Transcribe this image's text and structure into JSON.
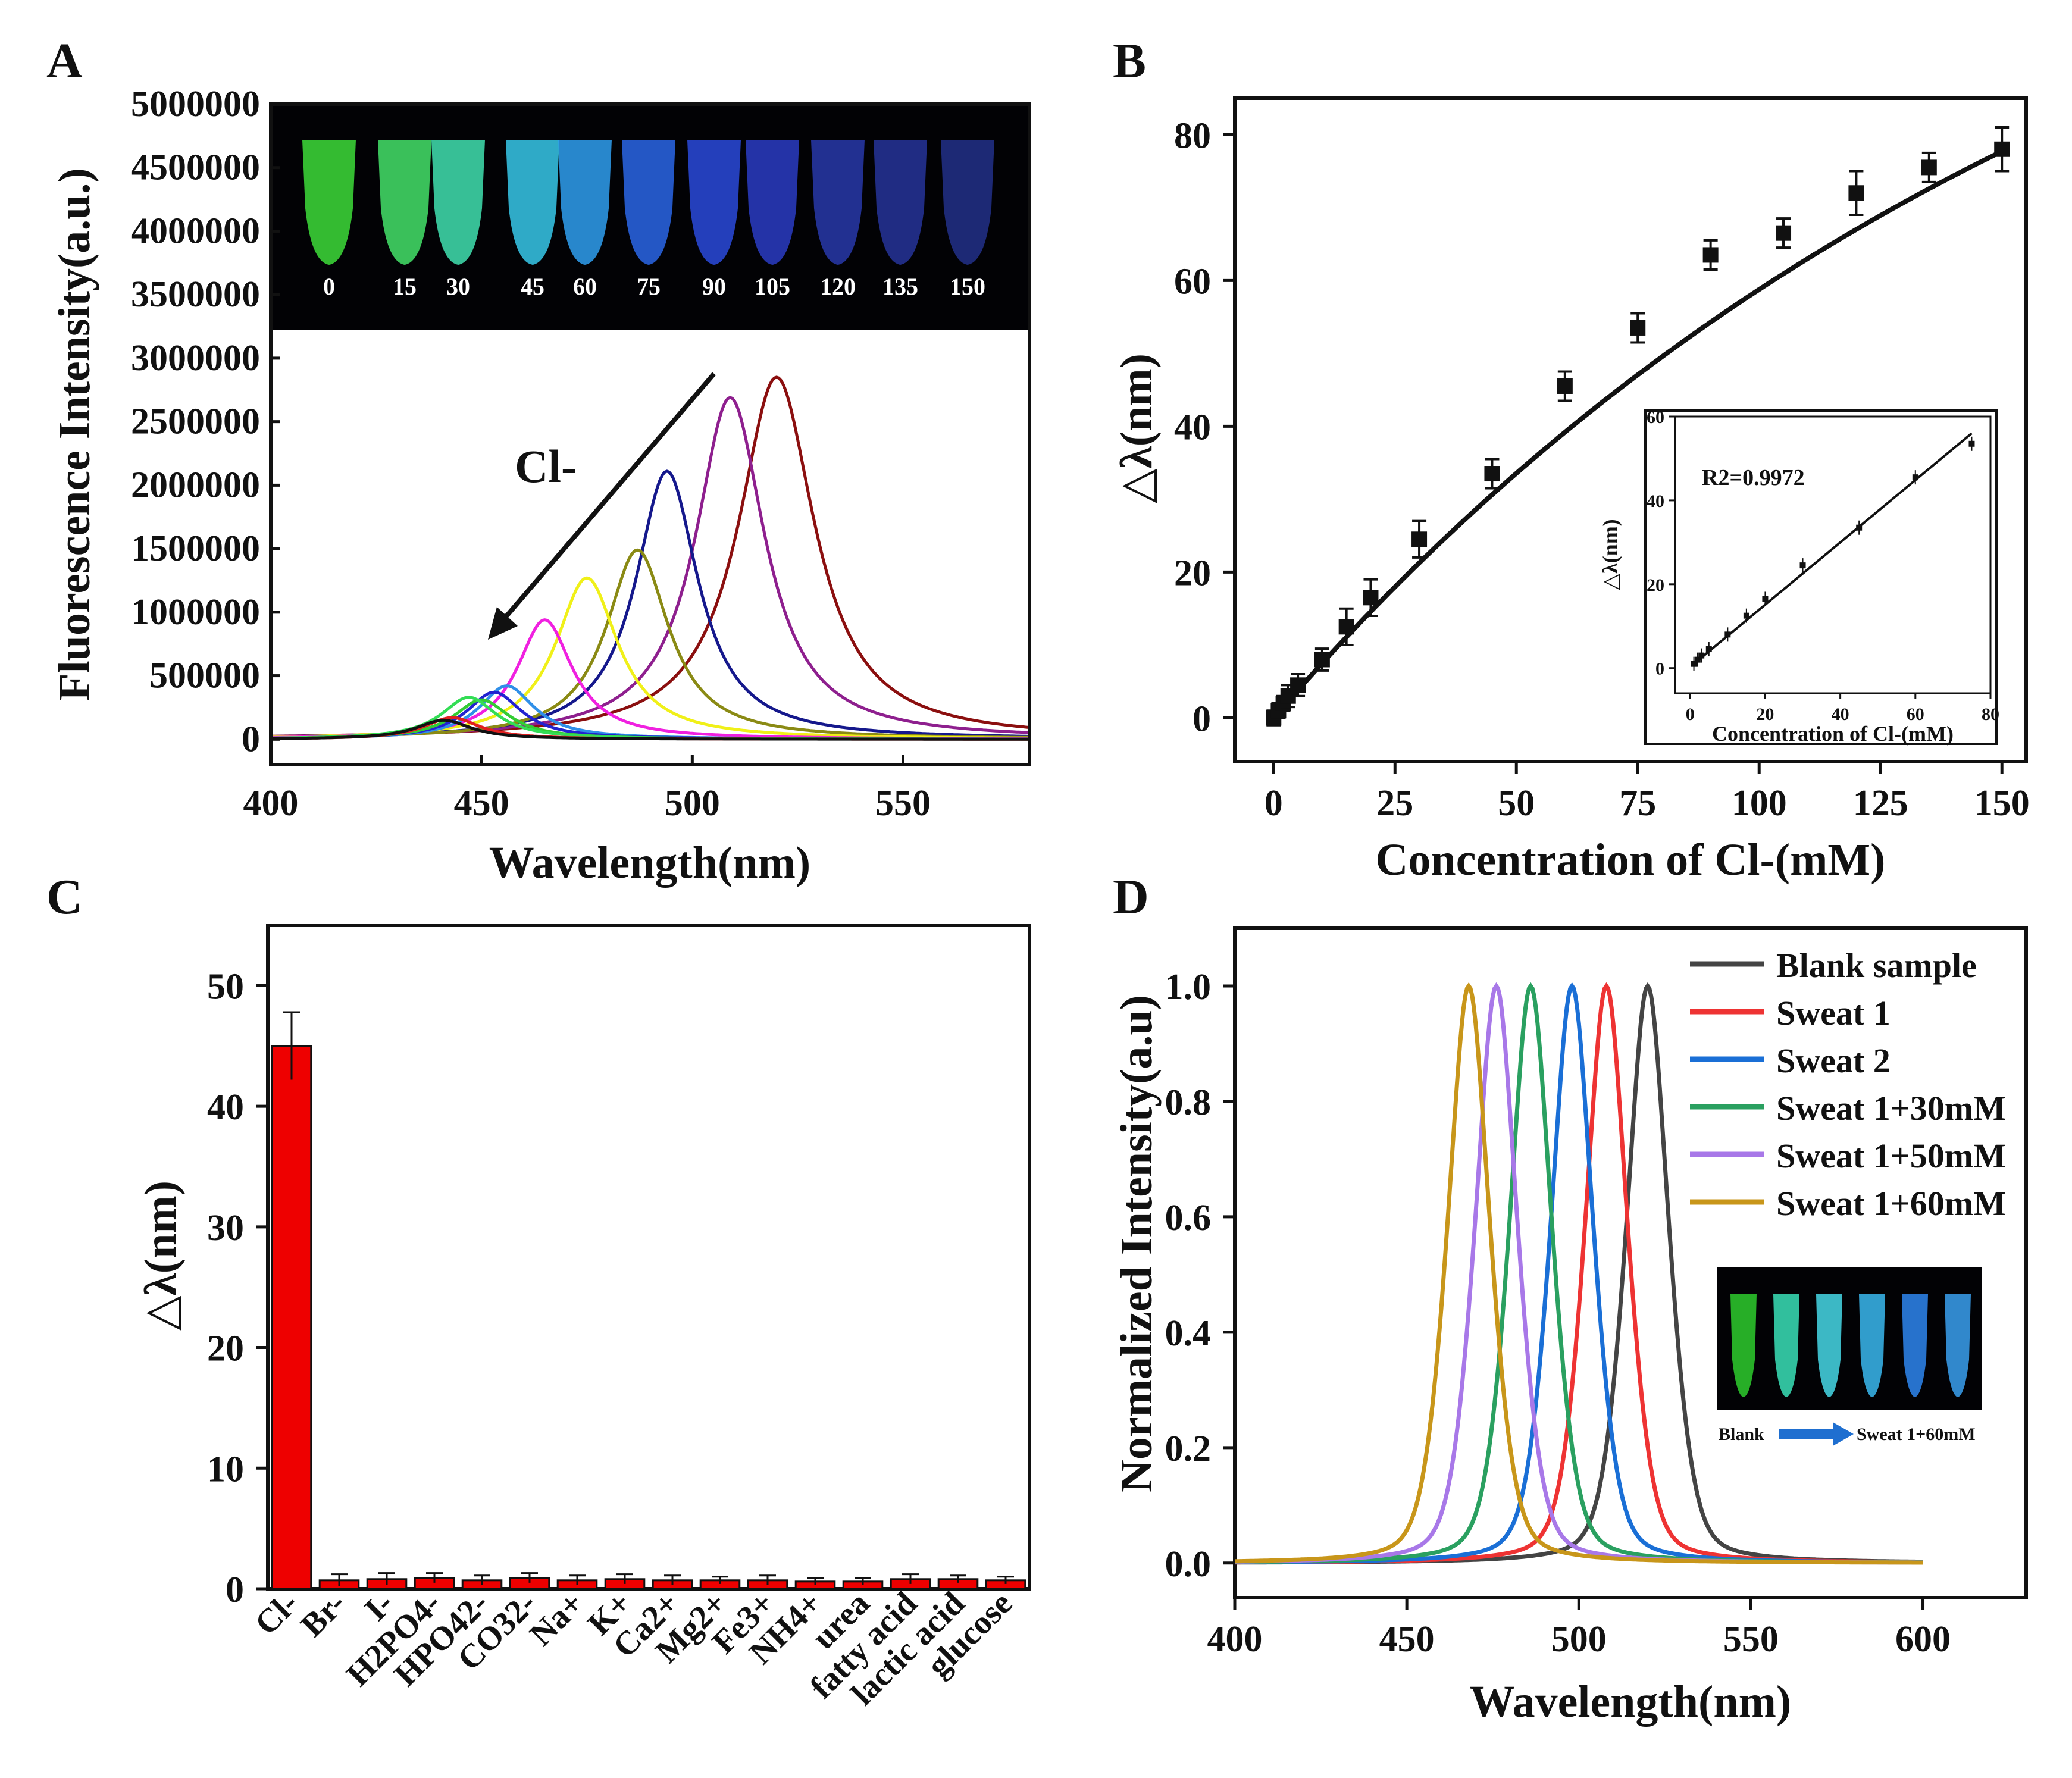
{
  "panels": {
    "A": {
      "label": "A"
    },
    "B": {
      "label": "B"
    },
    "C": {
      "label": "C"
    },
    "D": {
      "label": "D"
    }
  },
  "chart_data": [
    {
      "id": "A",
      "type": "line",
      "xlabel": "Wavelength(nm)",
      "ylabel": "Fluorescence Intensity(a.u.)",
      "xlim": [
        400,
        580
      ],
      "ylim": [
        -200000,
        5000000
      ],
      "xticks": [
        400,
        450,
        500,
        550
      ],
      "yticks": [
        0,
        500000,
        1000000,
        1500000,
        2000000,
        2500000,
        3000000,
        3500000,
        4000000,
        4500000,
        5000000
      ],
      "annotation": "Cl-",
      "inset_photo": {
        "labels": [
          "0",
          "15",
          "30",
          "45",
          "60",
          "75",
          "90",
          "105",
          "120",
          "135",
          "150"
        ],
        "colors": [
          "#3ddc3a",
          "#44e26a",
          "#41e0b0",
          "#37c8ea",
          "#2f9ff0",
          "#2a66e8",
          "#2a4adc",
          "#2a3cc4",
          "#2838aa",
          "#26349a",
          "#22308a"
        ]
      },
      "series": [
        {
          "peak": 520,
          "amp": 2850000,
          "width": 11,
          "color": "#8b0f0f"
        },
        {
          "peak": 509,
          "amp": 2690000,
          "width": 10,
          "color": "#8e1f8e"
        },
        {
          "peak": 494,
          "amp": 2110000,
          "width": 9,
          "color": "#15188c"
        },
        {
          "peak": 487,
          "amp": 1490000,
          "width": 9,
          "color": "#8a8a14"
        },
        {
          "peak": 475,
          "amp": 1270000,
          "width": 9,
          "color": "#f0f018"
        },
        {
          "peak": 465,
          "amp": 940000,
          "width": 8,
          "color": "#f020e0"
        },
        {
          "peak": 456,
          "amp": 420000,
          "width": 8,
          "color": "#2f8fe8"
        },
        {
          "peak": 453,
          "amp": 370000,
          "width": 8,
          "color": "#2222d0"
        },
        {
          "peak": 450,
          "amp": 310000,
          "width": 8,
          "color": "#33cc33"
        },
        {
          "peak": 447,
          "amp": 330000,
          "width": 8,
          "color": "#33dd55"
        },
        {
          "peak": 443,
          "amp": 170000,
          "width": 8,
          "color": "#e02020"
        },
        {
          "peak": 441,
          "amp": 150000,
          "width": 8,
          "color": "#111111"
        }
      ]
    },
    {
      "id": "B",
      "type": "scatter",
      "xlabel": "Concentration of  Cl-(mM)",
      "ylabel": "△λ(nm)",
      "xlim": [
        -8,
        155
      ],
      "ylim": [
        -6,
        85
      ],
      "xticks": [
        0,
        25,
        50,
        75,
        100,
        125,
        150
      ],
      "yticks": [
        0,
        20,
        40,
        60,
        80
      ],
      "x": [
        0,
        1,
        2,
        3,
        5,
        10,
        15,
        20,
        30,
        45,
        60,
        75,
        90,
        105,
        120,
        135,
        150
      ],
      "y": [
        0,
        1,
        2,
        3,
        4.5,
        8,
        12.5,
        16.5,
        24.5,
        33.5,
        45.5,
        53.5,
        63.5,
        66.5,
        72,
        75.5,
        78
      ],
      "err": [
        1,
        1,
        1,
        1.5,
        1.5,
        1.5,
        2.5,
        2.5,
        2.5,
        2,
        2,
        2,
        2,
        2,
        3,
        2,
        3
      ],
      "fit_note": "saturating curve",
      "inset": {
        "xlabel": "Concentration of  Cl-(mM)",
        "ylabel": "△λ(nm)",
        "annotation": "R2=0.9972",
        "xlim": [
          -4,
          80
        ],
        "ylim": [
          -6,
          60
        ],
        "xticks": [
          0,
          20,
          40,
          60,
          80
        ],
        "yticks": [
          0,
          20,
          40,
          60
        ],
        "x": [
          1,
          2,
          3,
          5,
          10,
          15,
          20,
          30,
          45,
          60,
          75
        ],
        "y": [
          1,
          2,
          3,
          4.5,
          8,
          12.5,
          16.5,
          24.5,
          33.5,
          45.5,
          53.5
        ],
        "fit": [
          [
            1,
            1
          ],
          [
            75,
            56
          ]
        ]
      }
    },
    {
      "id": "C",
      "type": "bar",
      "ylabel": "△λ(nm)",
      "ylim": [
        0,
        55
      ],
      "yticks": [
        0,
        10,
        20,
        30,
        40,
        50
      ],
      "categories": [
        "Cl-",
        "Br-",
        "I-",
        "H2PO4-",
        "HPO42-",
        "CO32-",
        "Na+",
        "K+",
        "Ca2+",
        "Mg2+",
        "Fe3+",
        "NH4+",
        "urea",
        "fatty acid",
        "lactic acid",
        "glucose"
      ],
      "values": [
        45,
        0.7,
        0.8,
        0.9,
        0.7,
        0.9,
        0.7,
        0.8,
        0.7,
        0.7,
        0.7,
        0.6,
        0.6,
        0.8,
        0.8,
        0.7
      ],
      "err": [
        2.8,
        0.5,
        0.5,
        0.4,
        0.4,
        0.4,
        0.4,
        0.4,
        0.4,
        0.3,
        0.4,
        0.3,
        0.3,
        0.4,
        0.3,
        0.3
      ],
      "color": "#ee0000"
    },
    {
      "id": "D",
      "type": "line",
      "xlabel": "Wavelength(nm)",
      "ylabel": "Normalized  Intensity(a.u)",
      "xlim": [
        400,
        630
      ],
      "ylim": [
        -0.06,
        1.1
      ],
      "xticks": [
        400,
        450,
        500,
        550,
        600
      ],
      "yticks": [
        0.0,
        0.2,
        0.4,
        0.6,
        0.8,
        1.0
      ],
      "series": [
        {
          "name": "Blank sample",
          "peak": 520,
          "width": 9,
          "color": "#444444"
        },
        {
          "name": "Sweat 1",
          "peak": 508,
          "width": 9,
          "color": "#ee3333"
        },
        {
          "name": "Sweat 2",
          "peak": 498,
          "width": 9,
          "color": "#1a6fd6"
        },
        {
          "name": "Sweat 1+30mM",
          "peak": 486,
          "width": 9,
          "color": "#2aa060"
        },
        {
          "name": "Sweat 1+50mM",
          "peak": 476,
          "width": 9,
          "color": "#a878e8"
        },
        {
          "name": "Sweat 1+60mM",
          "peak": 468,
          "width": 9,
          "color": "#c8961a"
        }
      ],
      "inset_photo": {
        "from_label": "Blank",
        "to_label": "Sweat 1+60mM",
        "colors": [
          "#2ecc2e",
          "#3ae0b8",
          "#46d8e8",
          "#3ab8f0",
          "#2e86f0",
          "#3aa0f0"
        ]
      }
    }
  ]
}
